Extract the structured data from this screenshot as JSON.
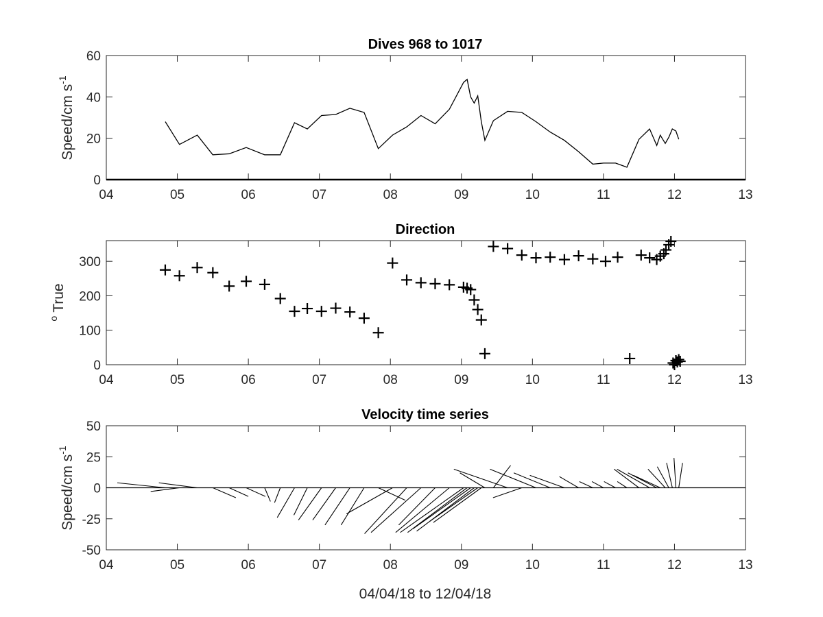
{
  "chart_data": [
    {
      "type": "line",
      "title": "Dives 968 to 1017",
      "ylabel": "Speed/cm s",
      "ylabel_superscript": "-1",
      "xlim": [
        4,
        13
      ],
      "ylim": [
        0,
        60
      ],
      "xticklabels": [
        "04",
        "05",
        "06",
        "07",
        "08",
        "09",
        "10",
        "11",
        "12",
        "13"
      ],
      "yticks": [
        0,
        20,
        40,
        60
      ],
      "baseline": 0,
      "x": [
        4.83,
        5.03,
        5.28,
        5.5,
        5.73,
        5.97,
        6.23,
        6.45,
        6.65,
        6.83,
        7.03,
        7.23,
        7.43,
        7.63,
        7.83,
        8.03,
        8.23,
        8.43,
        8.63,
        8.83,
        9.03,
        9.08,
        9.13,
        9.18,
        9.23,
        9.28,
        9.33,
        9.45,
        9.65,
        9.85,
        10.05,
        10.25,
        10.45,
        10.65,
        10.85,
        11.0,
        11.17,
        11.33,
        11.5,
        11.65,
        11.75,
        11.8,
        11.87,
        11.92,
        11.97,
        12.02,
        12.06
      ],
      "y": [
        28,
        17,
        21.5,
        12,
        12.5,
        15.5,
        12,
        12,
        27.5,
        24.5,
        31,
        31.5,
        34.5,
        32.5,
        15,
        21.5,
        25.5,
        31,
        27,
        34,
        47,
        48.5,
        40,
        37,
        40.5,
        28,
        19,
        28.5,
        33,
        32.5,
        28,
        23,
        19,
        13.5,
        7.5,
        8,
        8,
        6,
        19.5,
        24.5,
        16.5,
        21.5,
        17.5,
        20.5,
        24.5,
        23.5,
        19.5
      ]
    },
    {
      "type": "scatter",
      "title": "Direction",
      "ylabel": "True",
      "ylabel_prefix": "o",
      "xlim": [
        4,
        13
      ],
      "ylim": [
        0,
        360
      ],
      "xticklabels": [
        "04",
        "05",
        "06",
        "07",
        "08",
        "09",
        "10",
        "11",
        "12",
        "13"
      ],
      "yticks": [
        0,
        100,
        200,
        300
      ],
      "marker": "+",
      "x": [
        4.83,
        5.03,
        5.28,
        5.5,
        5.73,
        5.97,
        6.23,
        6.45,
        6.65,
        6.83,
        7.03,
        7.23,
        7.43,
        7.63,
        7.83,
        8.03,
        8.23,
        8.43,
        8.63,
        8.83,
        9.03,
        9.08,
        9.13,
        9.18,
        9.23,
        9.28,
        9.33,
        9.45,
        9.65,
        9.85,
        10.05,
        10.25,
        10.45,
        10.65,
        10.85,
        11.03,
        11.2,
        11.37,
        11.53,
        11.65,
        11.75,
        11.8,
        11.85,
        11.88,
        11.92,
        11.95,
        11.98,
        12.0,
        12.02,
        12.04,
        12.06,
        12.08
      ],
      "y": [
        275,
        258,
        282,
        267,
        228,
        242,
        233,
        192,
        155,
        163,
        155,
        164,
        153,
        135,
        93,
        295,
        246,
        238,
        235,
        232,
        225,
        222,
        218,
        188,
        160,
        130,
        32,
        343,
        337,
        318,
        310,
        312,
        305,
        316,
        307,
        300,
        312,
        18,
        318,
        310,
        305,
        315,
        322,
        333,
        348,
        358,
        5,
        0,
        12,
        8,
        15,
        10
      ]
    },
    {
      "type": "feather",
      "title": "Velocity time series",
      "ylabel": "Speed/cm s",
      "ylabel_superscript": "-1",
      "xlabel": "04/04/18 to 12/04/18",
      "xlim": [
        4,
        13
      ],
      "ylim": [
        -50,
        50
      ],
      "xticklabels": [
        "04",
        "05",
        "06",
        "07",
        "08",
        "09",
        "10",
        "11",
        "12",
        "13"
      ],
      "yticks": [
        -50,
        -25,
        0,
        25,
        50
      ],
      "baseline": 0,
      "x_scale": 0.027,
      "start": [
        4.83,
        5.03,
        5.28,
        5.5,
        5.73,
        5.97,
        6.23,
        6.45,
        6.65,
        6.83,
        7.03,
        7.23,
        7.43,
        7.63,
        7.83,
        8.03,
        8.23,
        8.43,
        8.63,
        8.83,
        9.03,
        9.08,
        9.13,
        9.18,
        9.23,
        9.28,
        9.33,
        9.45,
        9.65,
        9.85,
        10.05,
        10.25,
        10.45,
        10.65,
        10.85,
        11.0,
        11.17,
        11.33,
        11.5,
        11.65,
        11.75,
        11.8,
        11.87,
        11.92,
        11.97,
        12.02,
        12.06
      ],
      "u": [
        -25,
        -15,
        -20,
        12,
        10,
        10,
        3,
        -3,
        -9,
        -7,
        -12,
        -12,
        -13,
        -12,
        14,
        -24,
        -22,
        -26,
        -19,
        -28,
        -33,
        -31,
        -30,
        -30,
        -25,
        -25,
        -13,
        9,
        -28,
        -15,
        -24,
        -19,
        -18,
        -10,
        -7,
        -6,
        -6,
        -5,
        -13,
        -17,
        -15,
        -14,
        -9,
        -6,
        -3,
        -1,
        2
      ],
      "v": [
        4,
        -3,
        4,
        -8,
        -7,
        -7,
        -11,
        -12,
        -24,
        -22,
        -26,
        -26,
        -30,
        -30,
        -10,
        -21,
        -37,
        -36,
        -30,
        -36,
        -36,
        -36,
        -33,
        -35,
        -27,
        -28,
        12,
        18,
        15,
        -8,
        15,
        12,
        10,
        9,
        5,
        5,
        5,
        5,
        15,
        15,
        12,
        10,
        15,
        17,
        20,
        24,
        20
      ]
    }
  ]
}
